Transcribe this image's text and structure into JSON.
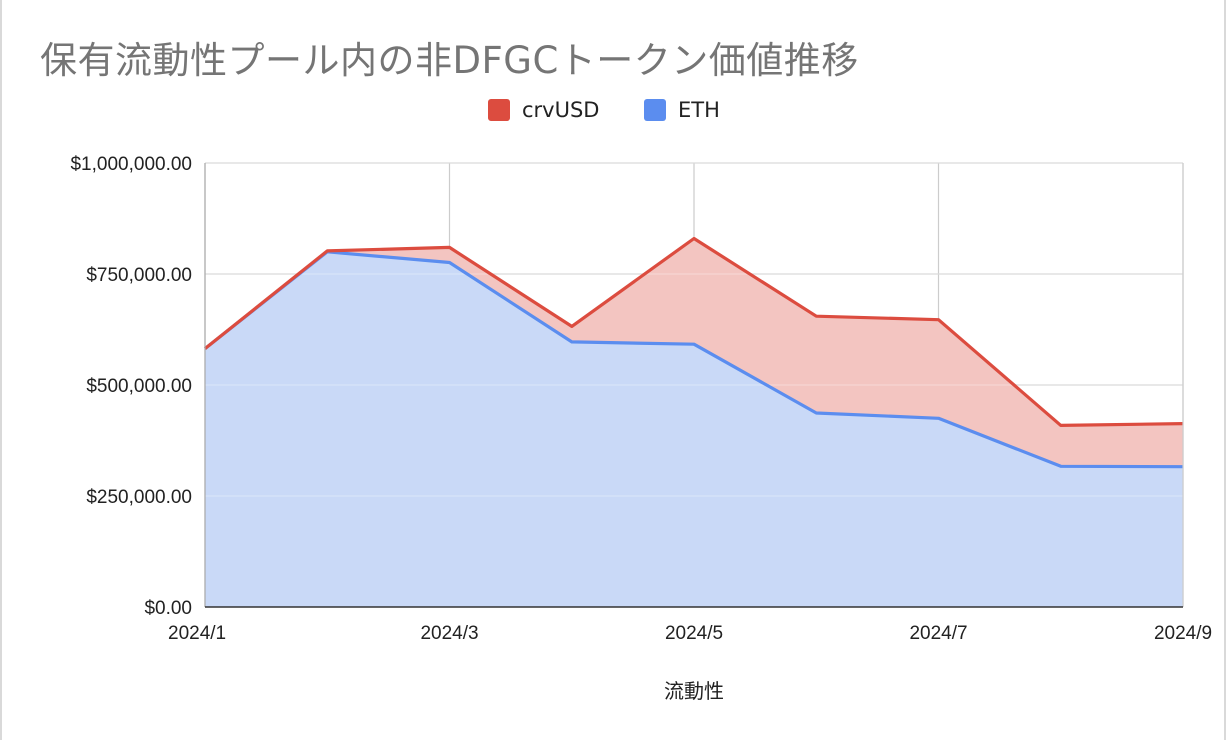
{
  "chart_data": {
    "type": "area",
    "stacked": true,
    "title": "保有流動性プール内の非DFGCトークン価値推移",
    "xlabel": "流動性",
    "ylabel": "",
    "x": [
      "2024/1",
      "2024/2",
      "2024/3",
      "2024/4",
      "2024/5",
      "2024/6",
      "2024/7",
      "2024/8",
      "2024/9"
    ],
    "x_tick_labels": [
      "2024/1",
      "2024/3",
      "2024/5",
      "2024/7",
      "2024/9"
    ],
    "ylim": [
      0,
      1000000
    ],
    "y_ticks": [
      0,
      250000,
      500000,
      750000,
      1000000
    ],
    "y_tick_labels": [
      "$0.00",
      "$250,000.00",
      "$500,000.00",
      "$750,000.00",
      "$1,000,000.00"
    ],
    "grid": true,
    "legend_position": "top",
    "series": [
      {
        "name": "ETH",
        "color": "#5b8def",
        "fill": "#c9d9f7",
        "values": [
          582000,
          800000,
          776000,
          597000,
          592000,
          437000,
          425000,
          317000,
          316000
        ]
      },
      {
        "name": "crvUSD",
        "color": "#dc4c3f",
        "fill": "#f3c5c1",
        "values": [
          0,
          2000,
          34000,
          35000,
          238000,
          218000,
          222000,
          92000,
          97000
        ]
      }
    ]
  },
  "legend": [
    {
      "label": "crvUSD",
      "color": "#dc4c3f"
    },
    {
      "label": "ETH",
      "color": "#5b8def"
    }
  ]
}
